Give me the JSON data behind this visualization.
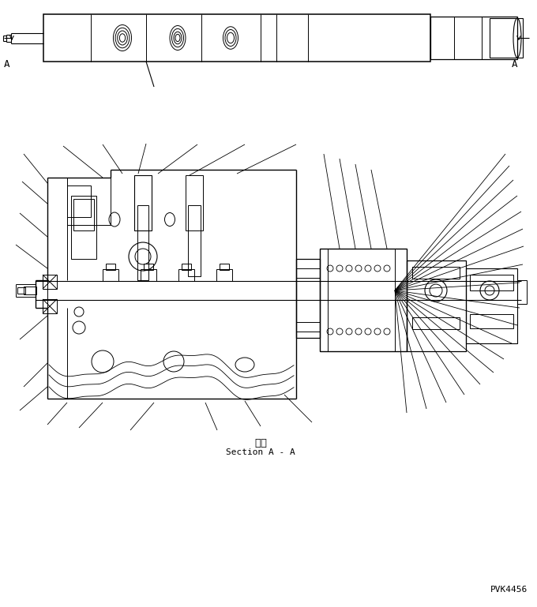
{
  "bg_color": "#ffffff",
  "line_color": "#000000",
  "text_color": "#000000",
  "section_label_jp": "断面",
  "section_label_en": "Section A - A",
  "part_code": "PVK4456"
}
